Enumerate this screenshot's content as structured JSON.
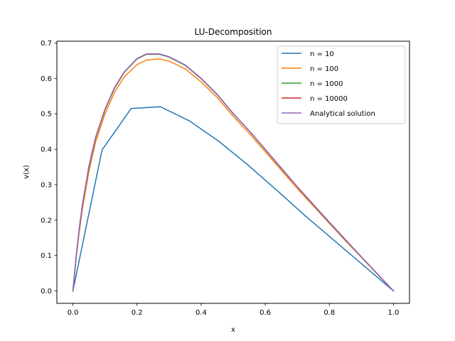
{
  "chart_data": {
    "type": "line",
    "title": "LU-Decomposition",
    "xlabel": "x",
    "ylabel": "v(x)",
    "xlim": [
      -0.05,
      1.05
    ],
    "ylim": [
      -0.035,
      0.705
    ],
    "x_ticks": [
      0.0,
      0.2,
      0.4,
      0.6,
      0.8,
      1.0
    ],
    "x_tick_labels": [
      "0.0",
      "0.2",
      "0.4",
      "0.6",
      "0.8",
      "1.0"
    ],
    "y_ticks": [
      0.0,
      0.1,
      0.2,
      0.3,
      0.4,
      0.5,
      0.6,
      0.7
    ],
    "y_tick_labels": [
      "0.0",
      "0.1",
      "0.2",
      "0.3",
      "0.4",
      "0.5",
      "0.6",
      "0.7"
    ],
    "grid": false,
    "legend_position": "top-right",
    "series": [
      {
        "name": "n = 10",
        "color": "#1f77b4",
        "x": [
          0.0,
          0.0909,
          0.1818,
          0.2727,
          0.3636,
          0.4545,
          0.5455,
          0.6364,
          0.7273,
          0.8182,
          0.9091,
          1.0
        ],
        "y": [
          0.0,
          0.398,
          0.515,
          0.52,
          0.48,
          0.423,
          0.356,
          0.284,
          0.21,
          0.14,
          0.07,
          0.0
        ]
      },
      {
        "name": "n = 100",
        "color": "#ff7f0e",
        "x": [
          0.0,
          0.01,
          0.02,
          0.03,
          0.05,
          0.07,
          0.1,
          0.13,
          0.16,
          0.2,
          0.23,
          0.27,
          0.3,
          0.35,
          0.4,
          0.45,
          0.5,
          0.55,
          0.6,
          0.65,
          0.7,
          0.75,
          0.8,
          0.85,
          0.9,
          0.95,
          1.0
        ],
        "y": [
          0.0,
          0.091,
          0.168,
          0.233,
          0.337,
          0.418,
          0.5,
          0.561,
          0.604,
          0.639,
          0.652,
          0.655,
          0.649,
          0.627,
          0.59,
          0.546,
          0.493,
          0.445,
          0.393,
          0.341,
          0.289,
          0.24,
          0.191,
          0.142,
          0.095,
          0.047,
          0.0
        ]
      },
      {
        "name": "n = 1000",
        "color": "#2ca02c",
        "x": [
          0.0,
          0.01,
          0.02,
          0.03,
          0.05,
          0.07,
          0.1,
          0.13,
          0.16,
          0.2,
          0.23,
          0.27,
          0.3,
          0.35,
          0.4,
          0.45,
          0.5,
          0.55,
          0.6,
          0.65,
          0.7,
          0.75,
          0.8,
          0.85,
          0.9,
          0.95,
          1.0
        ],
        "y": [
          0.0,
          0.095,
          0.176,
          0.244,
          0.35,
          0.429,
          0.511,
          0.572,
          0.617,
          0.655,
          0.668,
          0.668,
          0.66,
          0.637,
          0.599,
          0.554,
          0.5,
          0.452,
          0.399,
          0.346,
          0.294,
          0.243,
          0.193,
          0.144,
          0.096,
          0.048,
          0.0
        ]
      },
      {
        "name": "n = 10000",
        "color": "#d62728",
        "x": [
          0.0,
          0.01,
          0.02,
          0.03,
          0.05,
          0.07,
          0.1,
          0.13,
          0.16,
          0.2,
          0.23,
          0.27,
          0.3,
          0.35,
          0.4,
          0.45,
          0.5,
          0.55,
          0.6,
          0.65,
          0.7,
          0.75,
          0.8,
          0.85,
          0.9,
          0.95,
          1.0
        ],
        "y": [
          0.0,
          0.095,
          0.177,
          0.245,
          0.352,
          0.431,
          0.513,
          0.574,
          0.618,
          0.656,
          0.669,
          0.669,
          0.661,
          0.638,
          0.6,
          0.555,
          0.501,
          0.452,
          0.4,
          0.347,
          0.294,
          0.244,
          0.194,
          0.145,
          0.096,
          0.048,
          0.0
        ]
      },
      {
        "name": "Analytical solution",
        "color": "#9467bd",
        "x": [
          0.0,
          0.01,
          0.02,
          0.03,
          0.05,
          0.07,
          0.1,
          0.13,
          0.16,
          0.2,
          0.23,
          0.27,
          0.3,
          0.35,
          0.4,
          0.45,
          0.5,
          0.55,
          0.6,
          0.65,
          0.7,
          0.75,
          0.8,
          0.85,
          0.9,
          0.95,
          1.0
        ],
        "y": [
          0.0,
          0.095,
          0.177,
          0.245,
          0.352,
          0.431,
          0.513,
          0.574,
          0.618,
          0.656,
          0.669,
          0.669,
          0.661,
          0.638,
          0.6,
          0.555,
          0.501,
          0.452,
          0.4,
          0.347,
          0.294,
          0.244,
          0.194,
          0.145,
          0.096,
          0.048,
          0.0
        ]
      }
    ]
  }
}
